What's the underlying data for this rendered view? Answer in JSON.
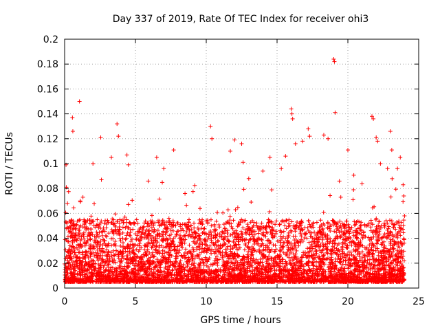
{
  "chart_data": {
    "type": "scatter",
    "title": "Day 337 of 2019, Rate Of TEC Index for receiver ohi3",
    "xlabel": "GPS time / hours",
    "ylabel": "ROTI / TECUs",
    "xlim": [
      0,
      25
    ],
    "ylim": [
      0,
      0.2
    ],
    "x_ticks": [
      "0",
      "5",
      "10",
      "15",
      "20",
      "25"
    ],
    "y_ticks": [
      "0",
      "0.02",
      "0.04",
      "0.06",
      "0.08",
      "0.1",
      "0.12",
      "0.14",
      "0.16",
      "0.18",
      "0.2"
    ],
    "grid": true,
    "marker": "plus",
    "color": "#ff0000",
    "series": [
      {
        "values_note": "",
        "points": [
          [
            0.1,
            0.099
          ],
          [
            0.12,
            0.081
          ],
          [
            0.2,
            0.068
          ],
          [
            0.3,
            0.045
          ],
          [
            0.55,
            0.137
          ],
          [
            0.58,
            0.126
          ],
          [
            1.05,
            0.15
          ],
          [
            1.1,
            0.07
          ],
          [
            2.0,
            0.1
          ],
          [
            2.55,
            0.121
          ],
          [
            2.6,
            0.087
          ],
          [
            3.3,
            0.105
          ],
          [
            3.7,
            0.132
          ],
          [
            3.8,
            0.122
          ],
          [
            4.4,
            0.107
          ],
          [
            4.5,
            0.099
          ],
          [
            5.9,
            0.086
          ],
          [
            6.5,
            0.105
          ],
          [
            7.0,
            0.096
          ],
          [
            7.7,
            0.111
          ],
          [
            8.5,
            0.076
          ],
          [
            10.3,
            0.13
          ],
          [
            10.4,
            0.12
          ],
          [
            11.7,
            0.11
          ],
          [
            12.0,
            0.119
          ],
          [
            12.5,
            0.116
          ],
          [
            12.6,
            0.101
          ],
          [
            13.0,
            0.088
          ],
          [
            14.0,
            0.094
          ],
          [
            14.5,
            0.105
          ],
          [
            15.3,
            0.096
          ],
          [
            15.6,
            0.106
          ],
          [
            16.0,
            0.144
          ],
          [
            16.05,
            0.14
          ],
          [
            16.1,
            0.136
          ],
          [
            16.3,
            0.116
          ],
          [
            16.8,
            0.118
          ],
          [
            17.2,
            0.128
          ],
          [
            17.3,
            0.122
          ],
          [
            18.3,
            0.123
          ],
          [
            18.6,
            0.12
          ],
          [
            19.0,
            0.184
          ],
          [
            19.05,
            0.182
          ],
          [
            19.1,
            0.141
          ],
          [
            19.4,
            0.086
          ],
          [
            19.5,
            0.073
          ],
          [
            20.0,
            0.111
          ],
          [
            20.4,
            0.079
          ],
          [
            21.0,
            0.084
          ],
          [
            21.7,
            0.138
          ],
          [
            21.8,
            0.136
          ],
          [
            22.0,
            0.121
          ],
          [
            22.1,
            0.118
          ],
          [
            22.3,
            0.1
          ],
          [
            22.8,
            0.096
          ],
          [
            23.0,
            0.126
          ],
          [
            23.1,
            0.111
          ],
          [
            23.5,
            0.096
          ],
          [
            23.7,
            0.105
          ],
          [
            23.9,
            0.083
          ],
          [
            23.95,
            0.074
          ],
          [
            24.0,
            0.058
          ]
        ]
      }
    ],
    "density_note": ""
  }
}
